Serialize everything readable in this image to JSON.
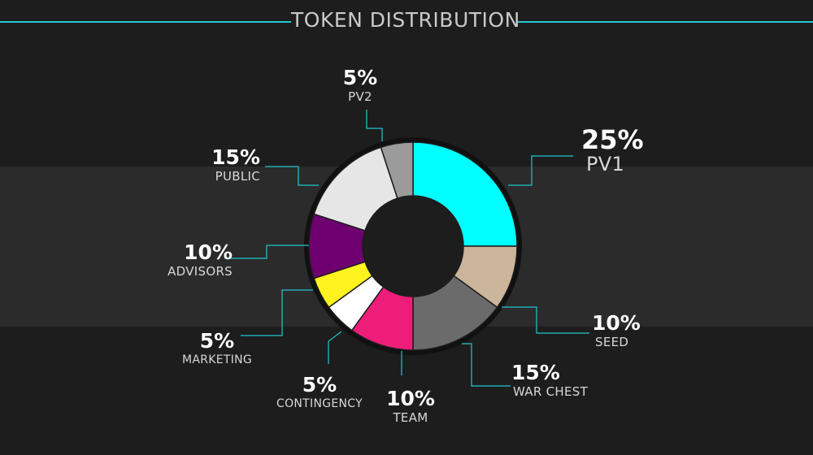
{
  "header": {
    "title": "TOKEN DISTRIBUTION"
  },
  "colors": {
    "accent": "#1fc7cf",
    "background": "#1d1d1d",
    "band": "#2b2b2b"
  },
  "chart_data": {
    "type": "pie",
    "variant": "donut",
    "title": "TOKEN DISTRIBUTION",
    "unit": "%",
    "slices": [
      {
        "label": "PV1",
        "value": 25,
        "display": "25%",
        "color": "#00ffff"
      },
      {
        "label": "SEED",
        "value": 10,
        "display": "10%",
        "color": "#cbb59b"
      },
      {
        "label": "WAR CHEST",
        "value": 15,
        "display": "15%",
        "color": "#6b6b6b"
      },
      {
        "label": "TEAM",
        "value": 10,
        "display": "10%",
        "color": "#ee1d79"
      },
      {
        "label": "CONTINGENCY",
        "value": 5,
        "display": "5%",
        "color": "#ffffff"
      },
      {
        "label": "MARKETING",
        "value": 5,
        "display": "5%",
        "color": "#fff21f"
      },
      {
        "label": "ADVISORS",
        "value": 10,
        "display": "10%",
        "color": "#6e0070"
      },
      {
        "label": "PUBLIC",
        "value": 15,
        "display": "15%",
        "color": "#e6e6e6"
      },
      {
        "label": "PV2",
        "value": 5,
        "display": "5%",
        "color": "#9b9b9b"
      }
    ]
  }
}
